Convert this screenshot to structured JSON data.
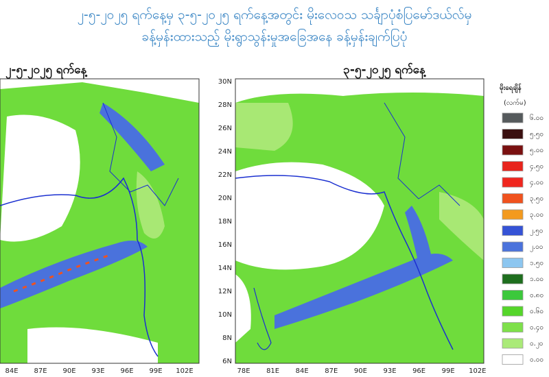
{
  "header": {
    "line1": "၂-၅-၂၀၂၅ ရက်နေ့မှ ၃-၅-၂၀၂၅ ရက်နေ့အတွင်း မိုးလေဝသ သင်္ချာပုံစံပြမော်ဒယ်လ်မှ",
    "line2": "ခန့်မှန်းထားသည့် မိုးရွာသွန်းမှုအခြေအနေ ခန့်မှန်းချက်ပြပုံ"
  },
  "maps": [
    {
      "title": "၂-၅-၂၀၂၅ ရက်နေ့",
      "x_labels": [
        "84E",
        "87E",
        "90E",
        "93E",
        "96E",
        "99E",
        "102E"
      ]
    },
    {
      "title": "၃-၅-၂၀၂၅ ရက်နေ့",
      "x_labels": [
        "78E",
        "81E",
        "84E",
        "87E",
        "90E",
        "93E",
        "96E",
        "99E",
        "102E"
      ],
      "y_labels": [
        "30N",
        "28N",
        "26N",
        "24N",
        "22N",
        "20N",
        "18N",
        "16N",
        "14N",
        "12N",
        "10N",
        "8N",
        "6N"
      ]
    }
  ],
  "legend": {
    "title": "မိုးရေချိန်",
    "unit": "(လက်မ)",
    "items": [
      {
        "label": "၆.၀၀",
        "color": "#555a5c"
      },
      {
        "label": "၅.၅၀",
        "color": "#3a1010"
      },
      {
        "label": "၅.၀၀",
        "color": "#7a1010"
      },
      {
        "label": "၄.၅၀",
        "color": "#e8241c"
      },
      {
        "label": "၄.၀၀",
        "color": "#f0261e"
      },
      {
        "label": "၃.၅၀",
        "color": "#f0521e"
      },
      {
        "label": "၃.၀၀",
        "color": "#f39a1e"
      },
      {
        "label": "၂.၅၀",
        "color": "#3553d6"
      },
      {
        "label": "၂.၀၀",
        "color": "#4a72dc"
      },
      {
        "label": "၁.၅၀",
        "color": "#8cc6f0"
      },
      {
        "label": "၁.၀၀",
        "color": "#1e6e1e"
      },
      {
        "label": "၀.၈၀",
        "color": "#3cc83c"
      },
      {
        "label": "၀.၆၀",
        "color": "#55d62a"
      },
      {
        "label": "၀.၄၀",
        "color": "#7ee04a"
      },
      {
        "label": "၀.၂၀",
        "color": "#aaea78"
      },
      {
        "label": "၀.၀၀",
        "color": "#ffffff"
      }
    ]
  }
}
